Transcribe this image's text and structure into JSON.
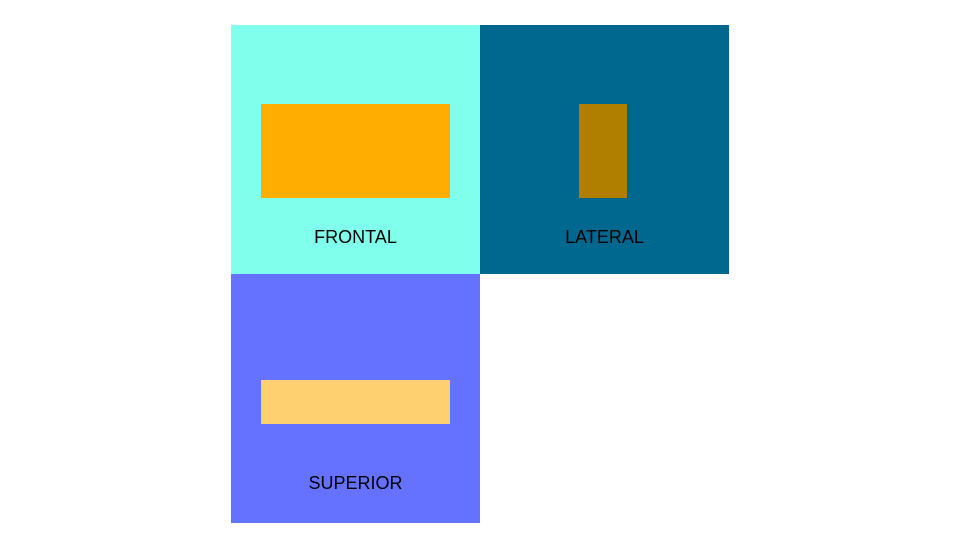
{
  "views": {
    "frontal": {
      "label": "FRONTAL",
      "background_color": "#7FFFEC",
      "shape_color": "#FFAE00"
    },
    "lateral": {
      "label": "LATERAL",
      "background_color": "#00678F",
      "shape_color": "#B07F00"
    },
    "superior": {
      "label": "SUPERIOR",
      "background_color": "#6472FF",
      "shape_color": "#FFD070"
    }
  }
}
